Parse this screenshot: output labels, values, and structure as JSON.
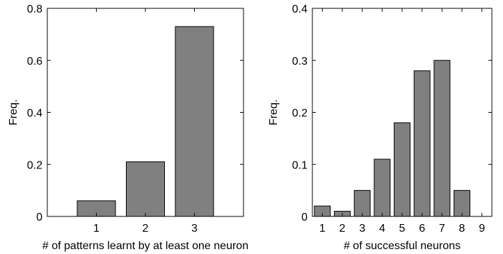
{
  "chart_data": [
    {
      "type": "bar",
      "title": "",
      "xlabel": "# of patterns learnt by at least one neuron",
      "ylabel": "Freq.",
      "xlim": [
        0,
        4
      ],
      "ylim": [
        0,
        0.8
      ],
      "xticks": [
        "1",
        "2",
        "3"
      ],
      "yticks": [
        "0",
        "0.2",
        "0.4",
        "0.6",
        "0.8"
      ],
      "categories": [
        1,
        2,
        3
      ],
      "values": [
        0.06,
        0.21,
        0.73
      ],
      "bar_color": "#808080",
      "grid": false,
      "legend": false
    },
    {
      "type": "bar",
      "title": "",
      "xlabel": "# of successful neurons",
      "ylabel": "Freq.",
      "xlim": [
        0.5,
        9.5
      ],
      "ylim": [
        0,
        0.4
      ],
      "xticks": [
        "1",
        "2",
        "3",
        "4",
        "5",
        "6",
        "7",
        "8",
        "9"
      ],
      "yticks": [
        "0",
        "0.1",
        "0.2",
        "0.3",
        "0.4"
      ],
      "categories": [
        1,
        2,
        3,
        4,
        5,
        6,
        7,
        8,
        9
      ],
      "values": [
        0.02,
        0.01,
        0.05,
        0.11,
        0.18,
        0.28,
        0.3,
        0.05,
        0.0
      ],
      "bar_color": "#808080",
      "grid": false,
      "legend": false
    }
  ]
}
